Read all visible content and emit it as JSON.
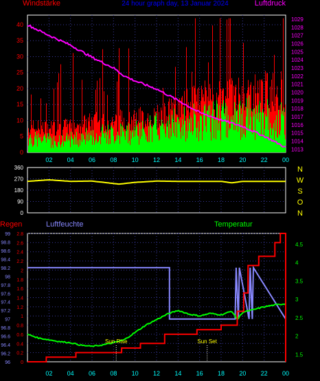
{
  "chart_data": [
    {
      "type": "bar",
      "title": "24 hour graph day, 13 Januar 2024",
      "left_label": "Windstärke",
      "right_label": "Luftdruck",
      "x_ticks": [
        "02",
        "04",
        "06",
        "08",
        "10",
        "12",
        "14",
        "16",
        "18",
        "20",
        "22",
        "00"
      ],
      "y_left": {
        "ticks": [
          "0",
          "5",
          "10",
          "15",
          "20",
          "25",
          "30",
          "35",
          "40"
        ],
        "min": 0,
        "max": 43
      },
      "y_right": {
        "ticks": [
          "1013",
          "1014",
          "1015",
          "1016",
          "1017",
          "1018",
          "1019",
          "1020",
          "1021",
          "1022",
          "1023",
          "1024",
          "1025",
          "1026",
          "1027",
          "1028",
          "1029"
        ],
        "min": 1012.6,
        "max": 1029.5
      },
      "series": [
        {
          "name": "Windstärke",
          "color": "#ff0000",
          "style": "bars-gust",
          "x_hours": [
            0,
            3,
            6,
            9,
            12,
            15,
            18,
            21,
            24
          ],
          "values": [
            9,
            9,
            11,
            12,
            13,
            18,
            20,
            22,
            23
          ]
        },
        {
          "name": "Windstärke avg",
          "color": "#00ff00",
          "style": "bars-avg",
          "x_hours": [
            0,
            3,
            6,
            9,
            12,
            15,
            18,
            21,
            24
          ],
          "values": [
            5,
            4,
            6,
            7,
            9,
            11,
            12,
            13,
            11
          ]
        },
        {
          "name": "Luftdruck",
          "color": "#ff00ff",
          "style": "line",
          "x_hours": [
            0,
            2,
            4,
            6,
            8,
            9,
            10,
            12,
            14,
            16,
            18,
            20,
            22,
            24
          ],
          "values": [
            1028.3,
            1027.0,
            1025.8,
            1024.3,
            1023.0,
            1022.0,
            1021.4,
            1020.4,
            1019.0,
            1017.5,
            1016.6,
            1015.8,
            1014.6,
            1013.2
          ]
        }
      ]
    },
    {
      "type": "line",
      "right_letters": [
        "N",
        "W",
        "S",
        "O",
        "N"
      ],
      "x_ticks": [
        "02",
        "04",
        "06",
        "08",
        "10",
        "12",
        "14",
        "16",
        "18",
        "20",
        "22",
        "00"
      ],
      "y_left": {
        "ticks": [
          "0",
          "90",
          "180",
          "270",
          "360"
        ],
        "min": 0,
        "max": 360
      },
      "series": [
        {
          "name": "Windrichtung",
          "color": "#ffff00",
          "x_hours": [
            0,
            2,
            4,
            6,
            7.5,
            8.5,
            10,
            12,
            14,
            18,
            19,
            20,
            22,
            24
          ],
          "values": [
            250,
            262,
            250,
            252,
            238,
            228,
            242,
            252,
            250,
            250,
            238,
            250,
            250,
            250
          ]
        }
      ]
    },
    {
      "type": "line",
      "header": {
        "left": "Regen",
        "middle": "Luftfeuchte",
        "right": "Temperatur"
      },
      "x_ticks": [
        "02",
        "04",
        "06",
        "08",
        "10",
        "12",
        "14",
        "16",
        "18",
        "20",
        "22",
        "00"
      ],
      "annotations": [
        {
          "text": "Sun Rise",
          "x_hour": 8.25
        },
        {
          "text": "Sun Set",
          "x_hour": 16.7
        }
      ],
      "y_regen": {
        "ticks": [
          "0",
          "0.2",
          "0.4",
          "0.6",
          "0.8",
          "1",
          "1.2",
          "1.4",
          "1.6",
          "1.8",
          "2",
          "2.2",
          "2.4",
          "2.6",
          "2.8"
        ],
        "min": 0,
        "max": 2.8
      },
      "y_feuchte": {
        "ticks": [
          "96",
          "96.2",
          "96.4",
          "96.6",
          "96.8",
          "97",
          "97.2",
          "97.4",
          "97.6",
          "97.8",
          "98",
          "98.2",
          "98.4",
          "98.6",
          "98.8",
          "99"
        ],
        "min": 96,
        "max": 99
      },
      "y_temp": {
        "ticks": [
          "1.5",
          "2",
          "2.5",
          "3",
          "3.5",
          "4",
          "4.5"
        ],
        "min": 1.3,
        "max": 4.8
      },
      "series": [
        {
          "name": "Regen",
          "color": "#ff0000",
          "style": "step",
          "x_hours": [
            0,
            1.75,
            4.5,
            8.75,
            10.5,
            12.75,
            15.75,
            18.0,
            19.5,
            20.1,
            20.5,
            21.5,
            23.0,
            23.5,
            24
          ],
          "values": [
            0,
            0.1,
            0.2,
            0.3,
            0.4,
            0.6,
            0.7,
            0.8,
            1.1,
            1.5,
            2.1,
            2.3,
            2.6,
            2.8,
            2.8
          ]
        },
        {
          "name": "Luftfeuchte",
          "color": "#8888ff",
          "style": "step",
          "x_hours": [
            0,
            13.2,
            13.2,
            19.3,
            19.4,
            19.6,
            19.7,
            20.6,
            20.7,
            20.9,
            21.0,
            24
          ],
          "values": [
            98.2,
            98.2,
            97,
            97,
            98.2,
            97,
            98.2,
            97,
            98.2,
            97,
            98.2,
            97
          ]
        },
        {
          "name": "Temperatur",
          "color": "#00ff00",
          "style": "line",
          "x_hours": [
            0,
            1,
            2,
            3,
            4,
            5,
            6,
            7,
            8,
            9,
            10,
            11,
            12,
            13,
            14,
            15,
            16,
            17,
            18,
            19,
            19.5,
            20,
            21,
            22,
            23,
            24
          ],
          "values": [
            2.05,
            1.95,
            1.9,
            1.85,
            1.82,
            1.75,
            1.72,
            1.76,
            1.82,
            1.9,
            2.1,
            2.3,
            2.45,
            2.6,
            2.7,
            2.6,
            2.55,
            2.62,
            2.58,
            2.68,
            2.45,
            2.65,
            2.72,
            2.8,
            2.85,
            2.88
          ]
        }
      ]
    }
  ]
}
